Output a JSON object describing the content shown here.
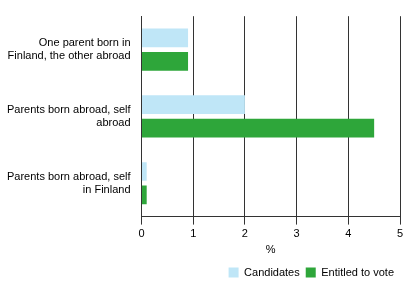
{
  "chart_data": {
    "type": "bar",
    "orientation": "horizontal",
    "categories": [
      "One parent born in Finland, the other abroad",
      "Parents born abroad, self abroad",
      "Parents born abroad, self in Finland"
    ],
    "series": [
      {
        "name": "Candidates",
        "color": "#bfe6f7",
        "values": [
          0.9,
          2.0,
          0.1
        ]
      },
      {
        "name": "Entitled to vote",
        "color": "#2ea63a",
        "values": [
          0.9,
          4.5,
          0.1
        ]
      }
    ],
    "x_label": "%",
    "xlim": [
      0,
      5
    ],
    "xticks": [
      0,
      1,
      2,
      3,
      4,
      5
    ],
    "grid": true,
    "legend": "lower right"
  }
}
